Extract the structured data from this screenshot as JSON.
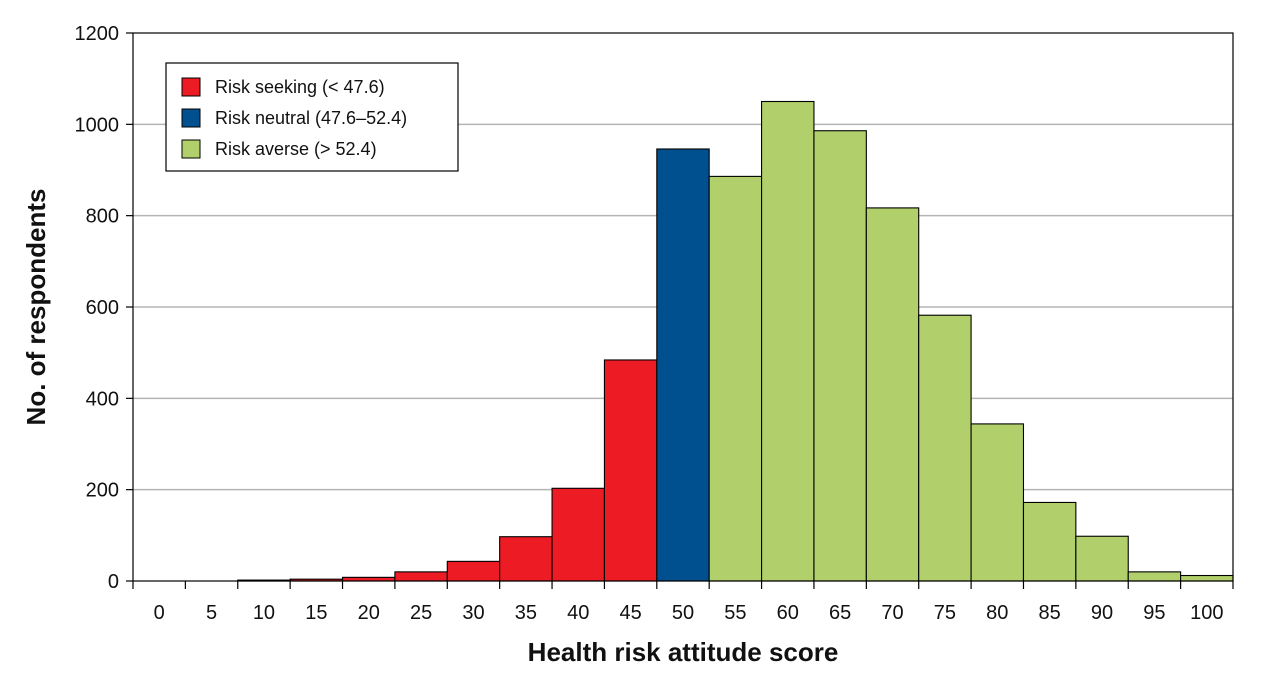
{
  "chart_data": {
    "type": "bar",
    "title": "",
    "xlabel": "Health risk attitude score",
    "ylabel": "No. of respondents",
    "ylim": [
      0,
      1200
    ],
    "yticks": [
      "0",
      "200",
      "400",
      "600",
      "800",
      "1000",
      "1200"
    ],
    "ytick_values": [
      0,
      200,
      400,
      600,
      800,
      1000,
      1200
    ],
    "grid": true,
    "legend_position": "top-left",
    "categories": [
      "0",
      "5",
      "10",
      "15",
      "20",
      "25",
      "30",
      "35",
      "40",
      "45",
      "50",
      "55",
      "60",
      "65",
      "70",
      "75",
      "80",
      "85",
      "90",
      "95",
      "100"
    ],
    "values": [
      0,
      0,
      2,
      4,
      8,
      20,
      43,
      97,
      203,
      484,
      946,
      886,
      1050,
      986,
      817,
      582,
      344,
      172,
      98,
      20,
      12
    ],
    "groups": [
      "seeking",
      "seeking",
      "seeking",
      "seeking",
      "seeking",
      "seeking",
      "seeking",
      "seeking",
      "seeking",
      "seeking",
      "neutral",
      "averse",
      "averse",
      "averse",
      "averse",
      "averse",
      "averse",
      "averse",
      "averse",
      "averse",
      "averse"
    ],
    "legend": [
      {
        "key": "seeking",
        "label": "Risk seeking (< 47.6)",
        "color": "#ED1C24"
      },
      {
        "key": "neutral",
        "label": "Risk neutral (47.6–52.4)",
        "color": "#004F8F"
      },
      {
        "key": "averse",
        "label": "Risk averse (> 52.4)",
        "color": "#B1D06B"
      }
    ]
  }
}
